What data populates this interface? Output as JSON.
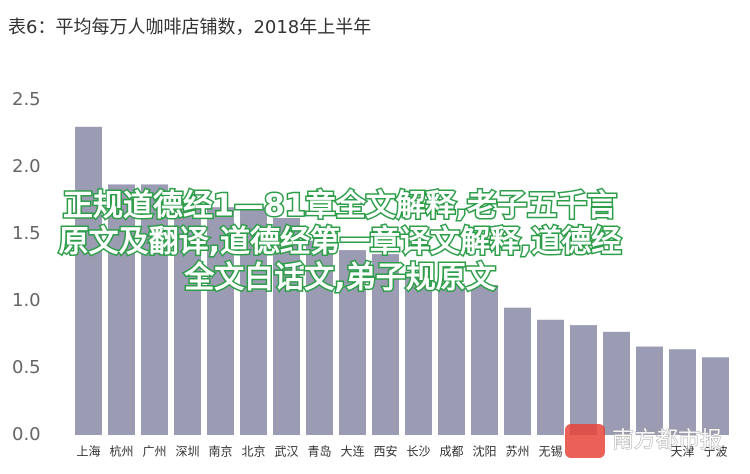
{
  "chart_data": {
    "type": "bar",
    "title": "表6：平均每万人咖啡店铺数，2018年上半年",
    "categories": [
      "上海",
      "杭州",
      "广州",
      "深圳",
      "南京",
      "北京",
      "武汉",
      "青岛",
      "大连",
      "西安",
      "长沙",
      "成都",
      "沈阳",
      "苏州",
      "无锡",
      null,
      null,
      null,
      "天津",
      "宁波"
    ],
    "values": [
      2.3,
      1.87,
      1.87,
      1.75,
      1.7,
      1.7,
      1.62,
      1.45,
      1.38,
      1.35,
      1.22,
      1.13,
      1.12,
      0.95,
      0.86,
      0.82,
      0.77,
      0.66,
      0.64,
      0.58
    ],
    "color": "#9b9bb3",
    "ylim": [
      0,
      2.5
    ],
    "yticks": [
      {
        "value": 0,
        "label": "0.0"
      },
      0.5,
      {
        "value": 1,
        "label": "1.0"
      },
      1.5,
      {
        "value": 2,
        "label": "2.0"
      },
      2.5
    ],
    "grid": false,
    "overlay_text": [
      "正规道德经1—81章全文解释,老子五千言",
      "原文及翻译,道德经第一章译文解释,道德经",
      "全文白话文,弟子规原文"
    ],
    "watermark": "南方都市报"
  }
}
